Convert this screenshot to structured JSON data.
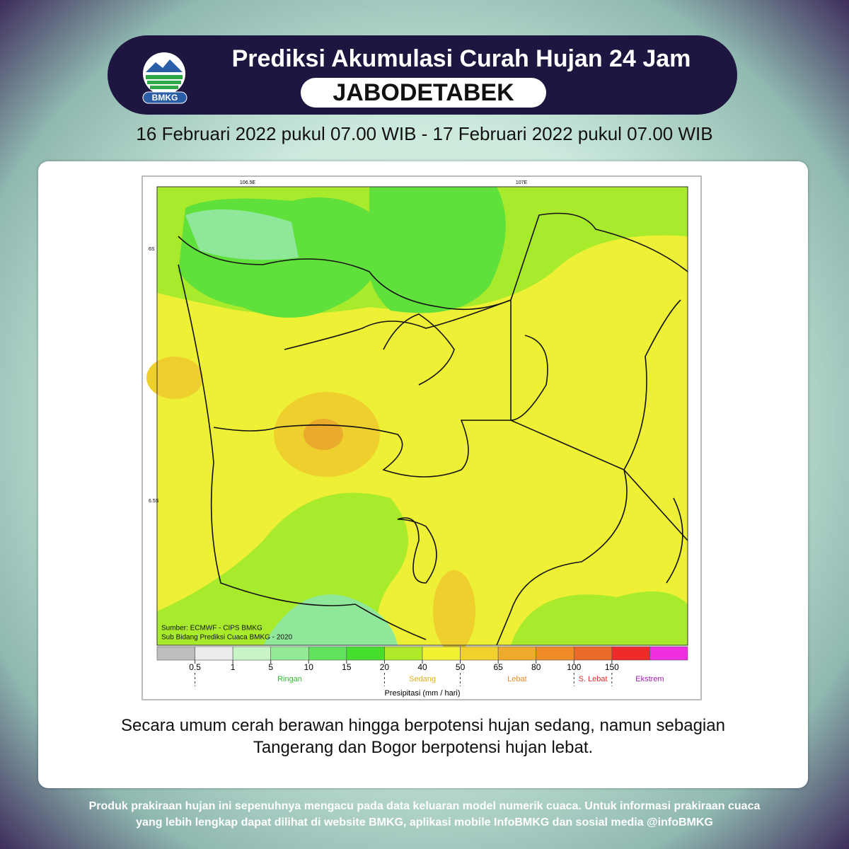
{
  "header": {
    "title": "Prediksi Akumulasi Curah Hujan 24 Jam",
    "region": "JABODETABEK",
    "logo_text": "BMKG"
  },
  "period": "16 Februari 2022 pukul 07.00 WIB - 17 Februari 2022 pukul 07.00 WIB",
  "map": {
    "lon_labels": [
      "106.5E",
      "107E"
    ],
    "lat_labels": [
      "6S",
      "6.5S"
    ],
    "source_lines": [
      "Sumber: ECMWF - CIPS BMKG",
      "Sub Bidang Prediksi Cuaca BMKG - 2020"
    ]
  },
  "legend": {
    "colors": [
      "#bdbdbd",
      "#ececec",
      "#c9f5c6",
      "#93eb98",
      "#63e35d",
      "#45de2c",
      "#aeea2a",
      "#f2f233",
      "#f2d12f",
      "#eeab2b",
      "#ee8b27",
      "#ea6a27",
      "#ee2a2a",
      "#ee2ee0"
    ],
    "ticks": [
      0.5,
      1,
      5,
      10,
      15,
      20,
      40,
      50,
      65,
      80,
      100,
      150
    ],
    "categories": [
      {
        "label": "Ringan",
        "color": "#2fbf2f"
      },
      {
        "label": "Sedang",
        "color": "#e0b020"
      },
      {
        "label": "Lebat",
        "color": "#ee8b27"
      },
      {
        "label": "S. Lebat",
        "color": "#e03030"
      },
      {
        "label": "Ekstrem",
        "color": "#a020b0"
      }
    ],
    "axis_label": "Presipitasi (mm / hari)"
  },
  "description": [
    "Secara umum cerah berawan hingga berpotensi hujan sedang, namun sebagian",
    "Tangerang dan Bogor berpotensi hujan lebat."
  ],
  "footer": [
    "Produk prakiraan hujan ini sepenuhnya mengacu pada data keluaran model numerik cuaca. Untuk informasi prakiraan cuaca",
    "yang lebih lengkap dapat dilihat di website BMKG, aplikasi mobile InfoBMKG dan sosial media @infoBMKG"
  ]
}
